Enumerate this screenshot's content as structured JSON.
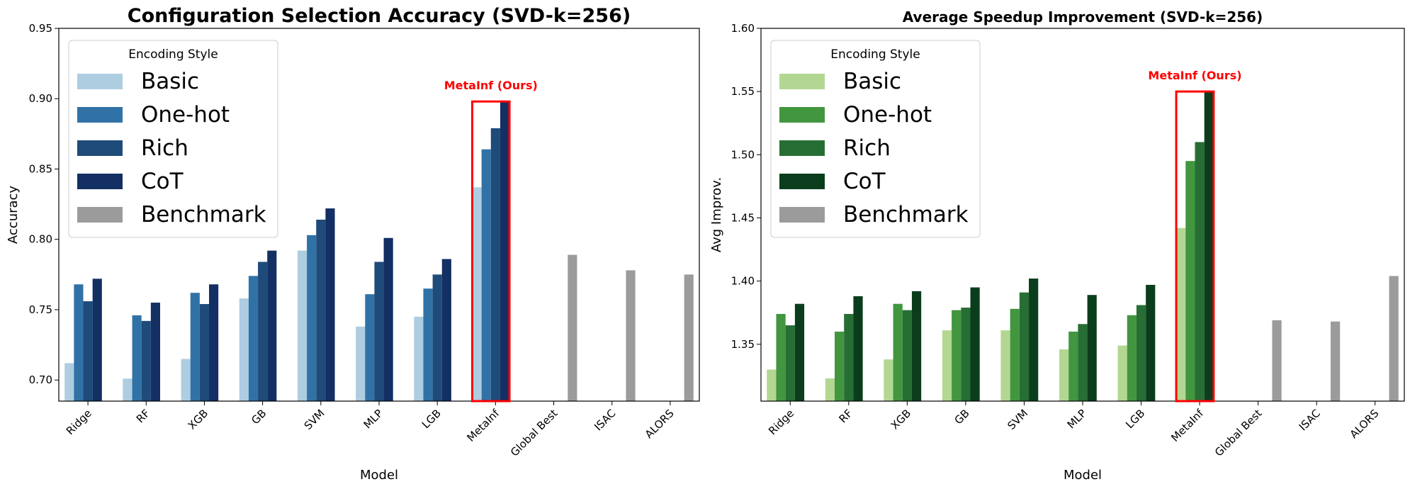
{
  "chart_data": [
    {
      "type": "bar",
      "title": "Configuration Selection Accuracy (SVD-k=256)",
      "xlabel": "Model",
      "ylabel": "Accuracy",
      "ylim": [
        0.685,
        0.95
      ],
      "yticks": [
        0.7,
        0.75,
        0.8,
        0.85,
        0.9,
        0.95
      ],
      "categories": [
        "Ridge",
        "RF",
        "XGB",
        "GB",
        "SVM",
        "MLP",
        "LGB",
        "MetaInf",
        "Global Best",
        "ISAC",
        "ALORS"
      ],
      "legend_title": "Encoding Style",
      "legend_position": "top-left",
      "series": [
        {
          "name": "Basic",
          "color": "#aecde1",
          "values": [
            0.712,
            0.701,
            0.715,
            0.758,
            0.792,
            0.738,
            0.745,
            0.837,
            null,
            null,
            null
          ]
        },
        {
          "name": "One-hot",
          "color": "#3172a6",
          "values": [
            0.768,
            0.746,
            0.762,
            0.774,
            0.803,
            0.761,
            0.765,
            0.864,
            null,
            null,
            null
          ]
        },
        {
          "name": "Rich",
          "color": "#1f4b7a",
          "values": [
            0.756,
            0.742,
            0.754,
            0.784,
            0.814,
            0.784,
            0.775,
            0.879,
            null,
            null,
            null
          ]
        },
        {
          "name": "CoT",
          "color": "#132f63",
          "values": [
            0.772,
            0.755,
            0.768,
            0.792,
            0.822,
            0.801,
            0.786,
            0.898,
            null,
            null,
            null
          ]
        },
        {
          "name": "Benchmark",
          "color": "#9b9b9b",
          "values": [
            null,
            null,
            null,
            null,
            null,
            null,
            null,
            null,
            0.789,
            0.778,
            0.775
          ]
        }
      ],
      "annotation": {
        "text": "MetaInf (Ours)",
        "category": "MetaInf",
        "color": "#ff0000"
      }
    },
    {
      "type": "bar",
      "title": "Average Speedup Improvement (SVD-k=256)",
      "xlabel": "Model",
      "ylabel": "Avg Improv.",
      "ylim": [
        1.305,
        1.6
      ],
      "yticks": [
        1.35,
        1.4,
        1.45,
        1.5,
        1.55,
        1.6
      ],
      "categories": [
        "Ridge",
        "RF",
        "XGB",
        "GB",
        "SVM",
        "MLP",
        "LGB",
        "MetaInf",
        "Global Best",
        "ISAC",
        "ALORS"
      ],
      "legend_title": "Encoding Style",
      "legend_position": "top-left",
      "series": [
        {
          "name": "Basic",
          "color": "#b3d793",
          "values": [
            1.33,
            1.323,
            1.338,
            1.361,
            1.361,
            1.346,
            1.349,
            1.442,
            null,
            null,
            null
          ]
        },
        {
          "name": "One-hot",
          "color": "#41963f",
          "values": [
            1.374,
            1.36,
            1.382,
            1.377,
            1.378,
            1.36,
            1.373,
            1.495,
            null,
            null,
            null
          ]
        },
        {
          "name": "Rich",
          "color": "#276e34",
          "values": [
            1.365,
            1.374,
            1.377,
            1.379,
            1.391,
            1.366,
            1.381,
            1.51,
            null,
            null,
            null
          ]
        },
        {
          "name": "CoT",
          "color": "#0b3d1d",
          "values": [
            1.382,
            1.388,
            1.392,
            1.395,
            1.402,
            1.389,
            1.397,
            1.55,
            null,
            null,
            null
          ]
        },
        {
          "name": "Benchmark",
          "color": "#9b9b9b",
          "values": [
            null,
            null,
            null,
            null,
            null,
            null,
            null,
            null,
            1.369,
            1.368,
            1.404
          ]
        }
      ],
      "annotation": {
        "text": "MetaInf (Ours)",
        "category": "MetaInf",
        "color": "#ff0000"
      }
    }
  ]
}
